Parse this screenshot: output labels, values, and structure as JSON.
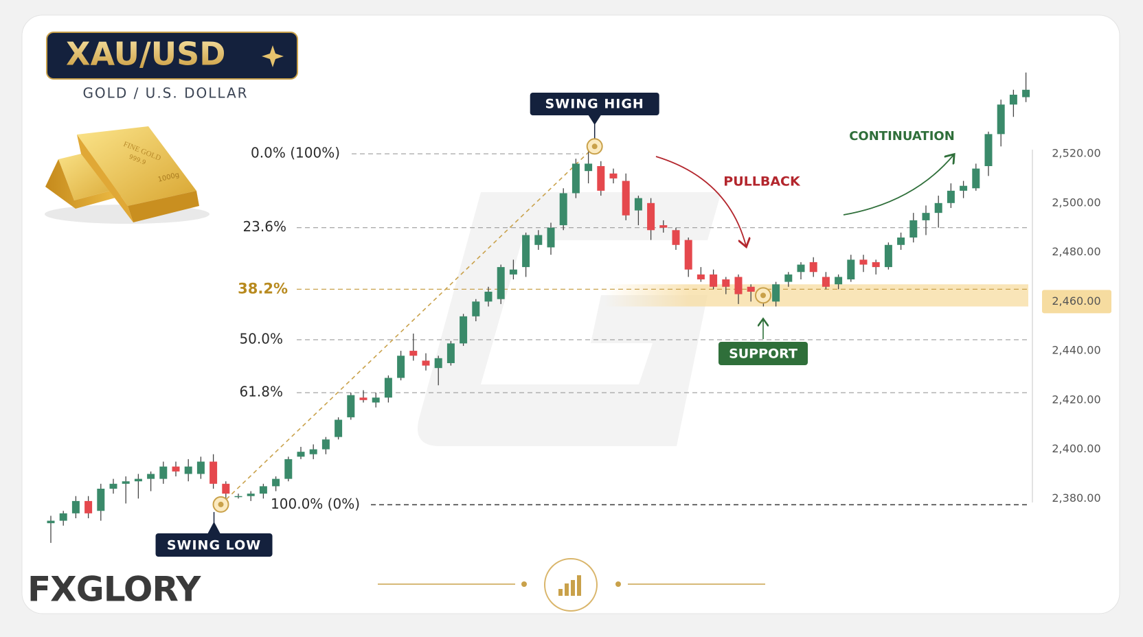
{
  "title": "XAU/USD",
  "subtitle": "GOLD / U.S. DOLLAR",
  "gold_bar": {
    "stamp": "FINE GOLD",
    "purity": "999.9",
    "weight": "1000g"
  },
  "logo": "FXGLORY",
  "chart_data": {
    "type": "candlestick",
    "up_color": "#3a8a6a",
    "down_color": "#e5484d",
    "ylim": [
      2355,
      2555
    ],
    "yticks": [
      {
        "value": 2380,
        "label": "2,380.00"
      },
      {
        "value": 2400,
        "label": "2,400.00"
      },
      {
        "value": 2420,
        "label": "2,420.00"
      },
      {
        "value": 2440,
        "label": "2,440.00"
      },
      {
        "value": 2460,
        "label": "2,460.00"
      },
      {
        "value": 2480,
        "label": "2,480.00"
      },
      {
        "value": 2500,
        "label": "2,500.00"
      },
      {
        "value": 2520,
        "label": "2,520.00"
      }
    ],
    "fib_levels": [
      {
        "label": "0.0% (100%)",
        "value": 2520
      },
      {
        "label": "23.6%",
        "value": 2490
      },
      {
        "label": "38.2%",
        "value": 2465
      },
      {
        "label": "50.0%",
        "value": 2444.5
      },
      {
        "label": "61.8%",
        "value": 2423
      },
      {
        "label": "100.0% (0%)",
        "value": 2377.5
      }
    ],
    "swing_high": {
      "label": "SWING HIGH",
      "value": 2523
    },
    "swing_low": {
      "label": "SWING LOW",
      "value": 2377.6
    },
    "support": {
      "label": "SUPPORT",
      "low": 2458,
      "high": 2467
    },
    "annotations": {
      "pullback": "PULLBACK",
      "continuation": "CONTINUATION"
    },
    "ohlc": [
      [
        2370,
        2373,
        2362,
        2371
      ],
      [
        2371,
        2375,
        2369,
        2374
      ],
      [
        2374,
        2381,
        2372,
        2379
      ],
      [
        2379,
        2381,
        2372,
        2374
      ],
      [
        2375,
        2386,
        2371,
        2384
      ],
      [
        2384,
        2388,
        2382,
        2386
      ],
      [
        2386,
        2389,
        2378,
        2387
      ],
      [
        2387,
        2390,
        2380,
        2388
      ],
      [
        2388,
        2391,
        2383,
        2390
      ],
      [
        2388,
        2395,
        2386,
        2393
      ],
      [
        2393,
        2395,
        2389,
        2391
      ],
      [
        2390,
        2396,
        2387,
        2393
      ],
      [
        2390,
        2397,
        2388,
        2395
      ],
      [
        2395,
        2398,
        2384,
        2386
      ],
      [
        2386,
        2387,
        2380,
        2382
      ],
      [
        2381,
        2382,
        2380,
        2381
      ],
      [
        2381,
        2383,
        2379,
        2382
      ],
      [
        2382,
        2386,
        2380,
        2385
      ],
      [
        2385,
        2389,
        2383,
        2388
      ],
      [
        2388,
        2397,
        2387,
        2396
      ],
      [
        2397,
        2401,
        2396,
        2399
      ],
      [
        2398,
        2402,
        2396,
        2400
      ],
      [
        2400,
        2405,
        2398,
        2404
      ],
      [
        2405,
        2413,
        2404,
        2412
      ],
      [
        2413,
        2423,
        2412,
        2422
      ],
      [
        2421,
        2424,
        2419,
        2420
      ],
      [
        2419,
        2423,
        2417,
        2421
      ],
      [
        2421,
        2430,
        2419,
        2429
      ],
      [
        2429,
        2440,
        2428,
        2438
      ],
      [
        2440,
        2447,
        2436,
        2438
      ],
      [
        2436,
        2439,
        2432,
        2434
      ],
      [
        2433,
        2438,
        2426,
        2437
      ],
      [
        2435,
        2444,
        2434,
        2443
      ],
      [
        2443,
        2455,
        2442,
        2454
      ],
      [
        2454,
        2461,
        2452,
        2460
      ],
      [
        2460,
        2466,
        2458,
        2464
      ],
      [
        2461,
        2475,
        2459,
        2474
      ],
      [
        2471,
        2477,
        2469,
        2473
      ],
      [
        2474,
        2488,
        2470,
        2487
      ],
      [
        2483,
        2489,
        2481,
        2487
      ],
      [
        2482,
        2492,
        2479,
        2490
      ],
      [
        2491,
        2506,
        2489,
        2504
      ],
      [
        2504,
        2518,
        2502,
        2516
      ],
      [
        2513,
        2523,
        2508,
        2516
      ],
      [
        2515,
        2517,
        2503,
        2505
      ],
      [
        2512,
        2514,
        2508,
        2510
      ],
      [
        2509,
        2512,
        2493,
        2495
      ],
      [
        2497,
        2503,
        2491,
        2502
      ],
      [
        2500,
        2502,
        2485,
        2489
      ],
      [
        2491,
        2493,
        2488,
        2490
      ],
      [
        2489,
        2490,
        2481,
        2483
      ],
      [
        2485,
        2486,
        2470,
        2473
      ],
      [
        2471,
        2474,
        2468,
        2469
      ],
      [
        2471,
        2473,
        2465,
        2466
      ],
      [
        2469,
        2470,
        2463,
        2466
      ],
      [
        2470,
        2471,
        2459,
        2463
      ],
      [
        2466,
        2467,
        2460,
        2464
      ],
      [
        2462,
        2464,
        2458,
        2462
      ],
      [
        2460,
        2468,
        2458,
        2467
      ],
      [
        2468,
        2472,
        2466,
        2471
      ],
      [
        2472,
        2476,
        2469,
        2475
      ],
      [
        2476,
        2478,
        2470,
        2472
      ],
      [
        2470,
        2472,
        2465,
        2466
      ],
      [
        2467,
        2471,
        2465,
        2470
      ],
      [
        2469,
        2479,
        2468,
        2477
      ],
      [
        2477,
        2479,
        2472,
        2475
      ],
      [
        2476,
        2477,
        2471,
        2474
      ],
      [
        2474,
        2484,
        2473,
        2483
      ],
      [
        2483,
        2488,
        2481,
        2486
      ],
      [
        2486,
        2496,
        2484,
        2493
      ],
      [
        2493,
        2499,
        2487,
        2496
      ],
      [
        2496,
        2503,
        2490,
        2500
      ],
      [
        2500,
        2508,
        2498,
        2505
      ],
      [
        2505,
        2509,
        2502,
        2507
      ],
      [
        2506,
        2516,
        2505,
        2514
      ],
      [
        2515,
        2529,
        2511,
        2528
      ],
      [
        2528,
        2542,
        2523,
        2540
      ],
      [
        2540,
        2546,
        2535,
        2544
      ],
      [
        2543,
        2553,
        2541,
        2546
      ]
    ]
  }
}
